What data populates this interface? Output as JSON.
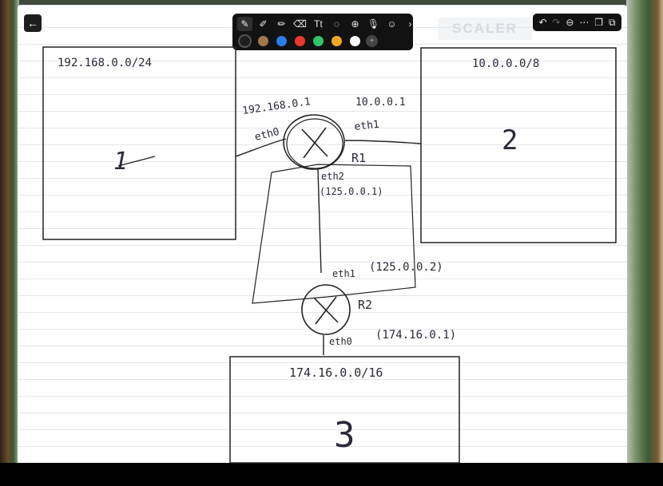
{
  "app": {
    "back_icon": "arrow-left-icon",
    "watermark": "SCALER"
  },
  "toolbar": {
    "tools": [
      {
        "name": "pen-icon",
        "glyph": "✎"
      },
      {
        "name": "brush-icon",
        "glyph": "✐"
      },
      {
        "name": "marker-icon",
        "glyph": "✏"
      },
      {
        "name": "eraser-icon",
        "glyph": "⌫"
      },
      {
        "name": "text-icon",
        "glyph": "Tt"
      },
      {
        "name": "shape-icon",
        "glyph": "◌"
      },
      {
        "name": "add-icon",
        "glyph": "⊕"
      },
      {
        "name": "microphone-icon",
        "glyph": "🎙"
      },
      {
        "name": "sticker-icon",
        "glyph": "☺"
      },
      {
        "name": "chevron-right-icon",
        "glyph": "›"
      }
    ],
    "colors": [
      "#1e1e1e",
      "#a07848",
      "#2b7de9",
      "#e8392f",
      "#33c46a",
      "#f5a623",
      "#ffffff"
    ],
    "more_glyph": "+"
  },
  "right_tools": [
    {
      "name": "undo-icon",
      "glyph": "↶"
    },
    {
      "name": "redo-icon",
      "glyph": "↷"
    },
    {
      "name": "zoom-out-icon",
      "glyph": "⊖"
    },
    {
      "name": "more-icon",
      "glyph": "⋯"
    },
    {
      "name": "pages-icon",
      "glyph": "❐"
    },
    {
      "name": "copy-icon",
      "glyph": "⧉"
    }
  ],
  "diagram": {
    "network1": {
      "label": "192.168.0.0/24",
      "number": "1"
    },
    "network2": {
      "label": "10.0.0.0/8",
      "number": "2"
    },
    "network3": {
      "label": "174.16.0.0/16",
      "number": "3"
    },
    "r1": {
      "name": "R1",
      "eth0": "eth0",
      "eth0_ip": "192.168.0.1",
      "eth1": "eth1",
      "eth1_ip": "10.0.0.1",
      "eth2": "eth2",
      "eth2_ip": "(125.0.0.1)"
    },
    "r2": {
      "name": "R2",
      "eth1": "eth1",
      "eth1_ip": "(125.0.0.2)",
      "eth0": "eth0",
      "eth0_ip": "(174.16.0.1)"
    }
  }
}
